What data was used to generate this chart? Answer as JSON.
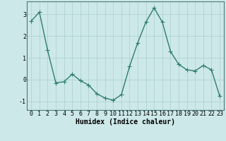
{
  "x": [
    0,
    1,
    2,
    3,
    4,
    5,
    6,
    7,
    8,
    9,
    10,
    11,
    12,
    13,
    14,
    15,
    16,
    17,
    18,
    19,
    20,
    21,
    22,
    23
  ],
  "y": [
    2.7,
    3.1,
    1.35,
    -0.15,
    -0.1,
    0.25,
    -0.05,
    -0.25,
    -0.65,
    -0.85,
    -0.95,
    -0.7,
    0.6,
    1.7,
    2.65,
    3.3,
    2.65,
    1.3,
    0.7,
    0.45,
    0.4,
    0.65,
    0.45,
    -0.75
  ],
  "line_color": "#2e7d6e",
  "marker": "+",
  "markersize": 4,
  "linewidth": 1.0,
  "xlabel": "Humidex (Indice chaleur)",
  "xlim": [
    -0.5,
    23.5
  ],
  "ylim": [
    -1.4,
    3.6
  ],
  "yticks": [
    -1,
    0,
    1,
    2,
    3
  ],
  "xticks": [
    0,
    1,
    2,
    3,
    4,
    5,
    6,
    7,
    8,
    9,
    10,
    11,
    12,
    13,
    14,
    15,
    16,
    17,
    18,
    19,
    20,
    21,
    22,
    23
  ],
  "bg_color": "#cde8e8",
  "grid_color": "#aacfcf",
  "tick_fontsize": 6,
  "xlabel_fontsize": 7
}
